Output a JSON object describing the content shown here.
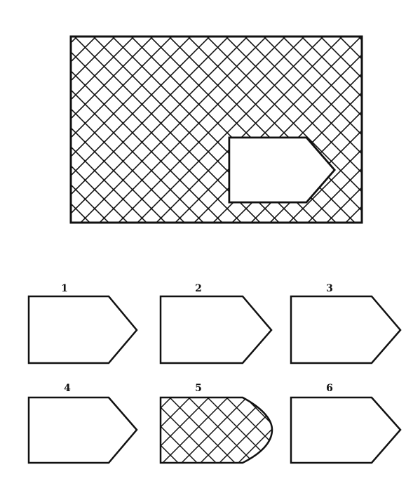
{
  "puzzle": {
    "main_pattern": "diagonal-crosshatch",
    "ink_color": "#111111",
    "options": [
      {
        "label": "1",
        "fill": "blank"
      },
      {
        "label": "2",
        "fill": "blank"
      },
      {
        "label": "3",
        "fill": "blank"
      },
      {
        "label": "4",
        "fill": "blank"
      },
      {
        "label": "5",
        "fill": "diagonal-crosshatch"
      },
      {
        "label": "6",
        "fill": "blank"
      }
    ]
  }
}
